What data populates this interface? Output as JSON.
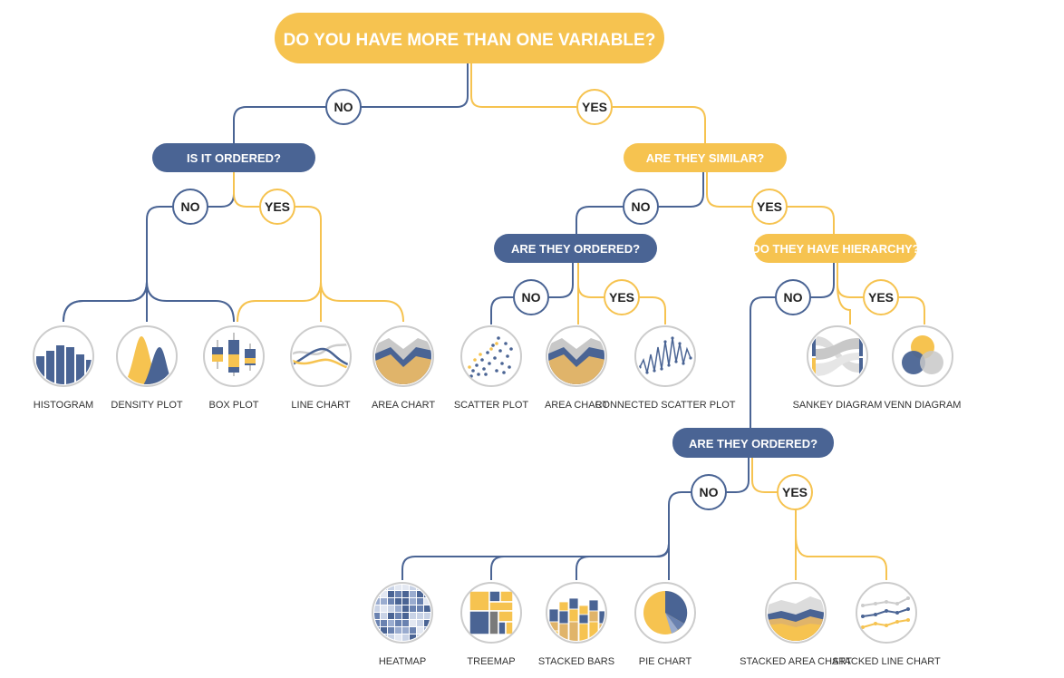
{
  "colors": {
    "navy": "#4a6494",
    "yellow": "#f6c350",
    "gray": "#cccccc",
    "tan": "#e0b46a",
    "white": "#ffffff"
  },
  "questions": {
    "root": "DO YOU HAVE MORE THAN ONE VARIABLE?",
    "ordered_1": "IS IT ORDERED?",
    "similar": "ARE THEY SIMILAR?",
    "ordered_2": "ARE THEY ORDERED?",
    "hierarchy": "DO THEY HAVE HIERARCHY?",
    "ordered_3": "ARE THEY ORDERED?"
  },
  "answers": {
    "no": "NO",
    "yes": "YES"
  },
  "charts": {
    "histogram": "HISTOGRAM",
    "density_plot": "DENSITY PLOT",
    "box_plot": "BOX PLOT",
    "line_chart": "LINE CHART",
    "area_chart_1": "AREA CHART",
    "scatter_plot": "SCATTER PLOT",
    "area_chart_2": "AREA CHART",
    "connected_scatter_plot": "CONNECTED SCATTER PLOT",
    "sankey_diagram": "SANKEY DIAGRAM",
    "venn_diagram": "VENN DIAGRAM",
    "heatmap": "HEATMAP",
    "treemap": "TREEMAP",
    "stacked_bars": "STACKED BARS",
    "pie_chart": "PIE CHART",
    "stacked_area_chart": "STACKED AREA CHART",
    "stacked_line_chart": "STACKED LINE CHART"
  }
}
